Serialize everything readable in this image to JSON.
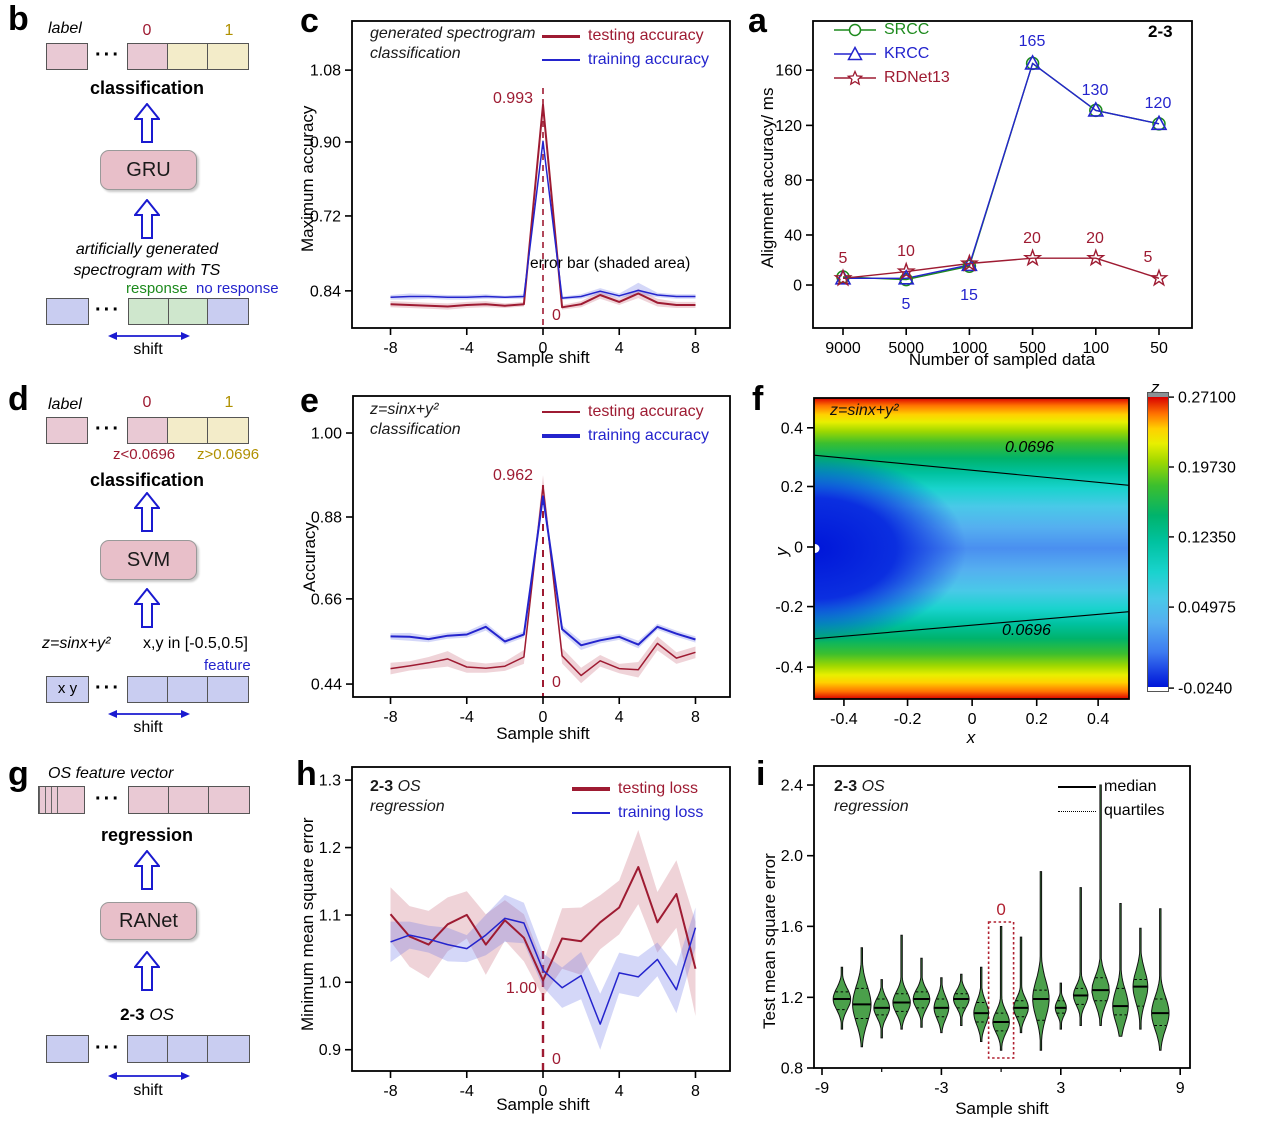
{
  "colors": {
    "testing": "#9e1b32",
    "training": "#2424cd",
    "srcc_green": "#1d8a1d",
    "gold": "#b09000",
    "violin_fill": "#4ba04b",
    "arrow_blue": "#1a1ad0",
    "box_pink": "#e9c9d4",
    "box_tan": "#f3ecc9",
    "box_blue": "#c9cdf1",
    "box_green": "#cfe7cd"
  },
  "panel_b": {
    "letter": "b",
    "label": "label",
    "dots": "···",
    "cell0": "0",
    "cell1": "1",
    "classification": "classification",
    "model": "GRU",
    "desc_line1": "artificially generated",
    "desc_line2": "spectrogram with TS",
    "response": "response",
    "no_response": "no response",
    "shift": "shift"
  },
  "panel_d": {
    "letter": "d",
    "label": "label",
    "dots": "···",
    "cell0": "0",
    "cell1": "1",
    "lt_label": "z<0.0696",
    "gt_label": "z>0.0696",
    "classification": "classification",
    "model": "SVM",
    "formula": "z=sinx+y²",
    "range": "x,y in [-0.5,0.5]",
    "feature": "feature",
    "xy": "x  y",
    "shift": "shift"
  },
  "panel_g": {
    "letter": "g",
    "header": "OS feature vector",
    "dots": "···",
    "regression": "regression",
    "model": "RANet",
    "os_bold": "2-3",
    "os_italic": "OS",
    "shift": "shift"
  },
  "chart_data": [
    {
      "id": "a",
      "type": "line",
      "panel_letter": "a",
      "corner_label": "2-3",
      "x_label": "Number of sampled data",
      "y_label": "Alignment accuracy/ ms",
      "categories": [
        "9000",
        "5000",
        "1000",
        "500",
        "100",
        "50"
      ],
      "y_ticks": [
        "160",
        "120",
        "80",
        "40",
        "0"
      ],
      "ylim": [
        -40,
        190
      ],
      "legend": [
        "SRCC",
        "KRCC",
        "RDNet13"
      ],
      "series": [
        {
          "name": "SRCC",
          "color": "#1d8a1d",
          "marker": "circle",
          "x": [
            0,
            1,
            2,
            3,
            4,
            5
          ],
          "values": [
            6,
            4,
            14,
            165,
            130,
            120
          ]
        },
        {
          "name": "KRCC",
          "color": "#2424cd",
          "marker": "triangle",
          "x": [
            0,
            1,
            2,
            3,
            4,
            5
          ],
          "values": [
            5,
            5,
            15,
            165,
            130,
            120
          ]
        },
        {
          "name": "RDNet13",
          "color": "#9e1b32",
          "marker": "star",
          "x": [
            0,
            1,
            2,
            3,
            4,
            5
          ],
          "values": [
            5,
            10,
            16,
            20,
            20,
            5
          ]
        }
      ],
      "annotations": [
        {
          "text": "5",
          "color": "#9e1b32"
        },
        {
          "text": "10",
          "color": "#9e1b32"
        },
        {
          "text": "5",
          "color": "#2424cd"
        },
        {
          "text": "15",
          "color": "#2424cd"
        },
        {
          "text": "165",
          "color": "#2424cd"
        },
        {
          "text": "20",
          "color": "#9e1b32"
        },
        {
          "text": "130",
          "color": "#2424cd"
        },
        {
          "text": "20",
          "color": "#9e1b32"
        },
        {
          "text": "120",
          "color": "#2424cd"
        },
        {
          "text": "5",
          "color": "#9e1b32"
        }
      ]
    },
    {
      "id": "c",
      "type": "line",
      "panel_letter": "c",
      "title_lines": [
        "generated spectrogram",
        "classification"
      ],
      "x_label": "Sample shift",
      "y_label": "Maximum accuracy",
      "note": "error bar (shaded area)",
      "x_ticks": [
        {
          "v": -8,
          "label": "-8"
        },
        {
          "v": -4,
          "label": "-4"
        },
        {
          "v": 0,
          "label": "0"
        },
        {
          "v": 4,
          "label": "4"
        },
        {
          "v": 8,
          "label": "8"
        }
      ],
      "y_ticks": [
        "1.08",
        "0.90",
        "0.72",
        "0.84"
      ],
      "legend": [
        "testing accuracy",
        "training accuracy"
      ],
      "x": [
        -8,
        -7,
        -6,
        -5,
        -4,
        -3,
        -2,
        -1,
        0,
        1,
        2,
        3,
        4,
        5,
        6,
        7,
        8
      ],
      "series": [
        {
          "name": "testing accuracy",
          "color": "#9e1b32",
          "values": [
            0.824,
            0.823,
            0.822,
            0.821,
            0.823,
            0.824,
            0.822,
            0.824,
            0.993,
            0.82,
            0.824,
            0.836,
            0.827,
            0.838,
            0.826,
            0.823,
            0.823
          ],
          "band": [
            0.004,
            0.004,
            0.004,
            0.004,
            0.004,
            0.004,
            0.003,
            0.003,
            0.004,
            0.003,
            0.004,
            0.005,
            0.004,
            0.006,
            0.005,
            0.004,
            0.004
          ]
        },
        {
          "name": "training accuracy",
          "color": "#2424cd",
          "values": [
            0.833,
            0.834,
            0.834,
            0.833,
            0.833,
            0.834,
            0.833,
            0.834,
            0.902,
            0.832,
            0.834,
            0.841,
            0.835,
            0.842,
            0.836,
            0.834,
            0.834
          ],
          "band": [
            0.003,
            0.004,
            0.003,
            0.003,
            0.003,
            0.003,
            0.002,
            0.003,
            0.004,
            0.002,
            0.003,
            0.004,
            0.003,
            0.005,
            0.003,
            0.003,
            0.003
          ]
        }
      ],
      "annotations": [
        {
          "text": "0.993",
          "color": "#9e1b32"
        },
        {
          "text": "0",
          "color": "#9e1b32"
        }
      ]
    },
    {
      "id": "e",
      "type": "line",
      "panel_letter": "e",
      "title_lines": [
        "z=sinx+y²",
        "classification"
      ],
      "x_label": "Sample shift",
      "y_label": "Accuracy",
      "x_ticks": [
        {
          "v": -8,
          "label": "-8"
        },
        {
          "v": -4,
          "label": "-4"
        },
        {
          "v": 0,
          "label": "0"
        },
        {
          "v": 4,
          "label": "4"
        },
        {
          "v": 8,
          "label": "8"
        }
      ],
      "y_ticks": [
        "1.00",
        "0.88",
        "0.66",
        "0.44"
      ],
      "legend": [
        "testing accuracy",
        "training accuracy"
      ],
      "x": [
        -8,
        -7,
        -6,
        -5,
        -4,
        -3,
        -2,
        -1,
        0,
        1,
        2,
        3,
        4,
        5,
        6,
        7,
        8
      ],
      "series": [
        {
          "name": "testing accuracy",
          "color": "#9e1b32",
          "values": [
            0.48,
            0.487,
            0.495,
            0.505,
            0.484,
            0.481,
            0.486,
            0.51,
            0.962,
            0.513,
            0.462,
            0.5,
            0.48,
            0.477,
            0.545,
            0.507,
            0.522
          ],
          "band": [
            0.015,
            0.012,
            0.015,
            0.02,
            0.015,
            0.012,
            0.012,
            0.018,
            0.008,
            0.02,
            0.02,
            0.015,
            0.012,
            0.02,
            0.018,
            0.015,
            0.015
          ]
        },
        {
          "name": "training accuracy",
          "color": "#2424cd",
          "values": [
            0.563,
            0.562,
            0.556,
            0.565,
            0.568,
            0.588,
            0.55,
            0.568,
            0.935,
            0.582,
            0.54,
            0.553,
            0.562,
            0.542,
            0.588,
            0.57,
            0.555
          ],
          "band": [
            0.008,
            0.01,
            0.008,
            0.008,
            0.008,
            0.01,
            0.008,
            0.008,
            0.006,
            0.01,
            0.012,
            0.008,
            0.008,
            0.01,
            0.008,
            0.008,
            0.008
          ]
        }
      ],
      "annotations": [
        {
          "text": "0.962",
          "color": "#9e1b32"
        },
        {
          "text": "0",
          "color": "#9e1b32"
        }
      ]
    },
    {
      "id": "f",
      "type": "heatmap",
      "panel_letter": "f",
      "title": "z=sinx+y²",
      "x_label": "x",
      "y_label": "y",
      "x_ticks": [
        "-0.4",
        "-0.2",
        "0",
        "0.2",
        "0.4"
      ],
      "y_ticks": [
        "0.4",
        "0.2",
        "0",
        "-0.2",
        "-0.4"
      ],
      "xlim": [
        -0.5,
        0.5
      ],
      "ylim": [
        -0.5,
        0.5
      ],
      "contour_level": "0.0696",
      "contour_upper": {
        "y_left": 0.31,
        "y_right": 0.21
      },
      "contour_lower": {
        "y_left": -0.3,
        "y_right": -0.21
      },
      "colorbar": {
        "title": "z",
        "ticks": [
          "0.27100",
          "0.19730",
          "0.12350",
          "0.04975",
          "-0.0240"
        ],
        "zmin": -0.024,
        "zmax": 0.271
      }
    },
    {
      "id": "h",
      "type": "line",
      "panel_letter": "h",
      "title_bold": "2-3",
      "title_italic": "OS",
      "title_line2": "regression",
      "x_label": "Sample shift",
      "y_label": "Minimum mean square error",
      "x_ticks": [
        {
          "v": -8,
          "label": "-8"
        },
        {
          "v": -4,
          "label": "-4"
        },
        {
          "v": 0,
          "label": "0"
        },
        {
          "v": 4,
          "label": "4"
        },
        {
          "v": 8,
          "label": "8"
        }
      ],
      "y_ticks": [
        "1.3",
        "1.2",
        "1.1",
        "1.0",
        "0.9"
      ],
      "legend": [
        "testing loss",
        "training loss"
      ],
      "x": [
        -8,
        -7,
        -6,
        -5,
        -4,
        -3,
        -2,
        -1,
        0,
        1,
        2,
        3,
        4,
        5,
        6,
        7,
        8
      ],
      "series": [
        {
          "name": "testing loss",
          "color": "#9e1b32",
          "values": [
            1.101,
            1.068,
            1.056,
            1.086,
            1.1,
            1.056,
            1.092,
            1.066,
            1.003,
            1.065,
            1.061,
            1.089,
            1.111,
            1.171,
            1.089,
            1.131,
            1.02
          ],
          "band": [
            0.04,
            0.045,
            0.05,
            0.04,
            0.035,
            0.045,
            0.03,
            0.035,
            0.025,
            0.045,
            0.05,
            0.04,
            0.04,
            0.055,
            0.045,
            0.05,
            0.07
          ]
        },
        {
          "name": "training loss",
          "color": "#2424cd",
          "values": [
            1.06,
            1.07,
            1.064,
            1.056,
            1.05,
            1.07,
            1.095,
            1.088,
            1.018,
            0.992,
            1.01,
            0.938,
            1.014,
            1.008,
            1.034,
            0.989,
            1.081
          ],
          "band": [
            0.03,
            0.02,
            0.02,
            0.025,
            0.02,
            0.03,
            0.035,
            0.03,
            0.025,
            0.03,
            0.035,
            0.045,
            0.03,
            0.03,
            0.025,
            0.035,
            0.03
          ]
        }
      ],
      "annotations": [
        {
          "text": "1.00",
          "color": "#9e1b32"
        },
        {
          "text": "0",
          "color": "#9e1b32"
        }
      ]
    },
    {
      "id": "i",
      "type": "violin",
      "panel_letter": "i",
      "title_bold": "2-3",
      "title_italic": "OS",
      "title_line2": "regression",
      "x_label": "Sample shift",
      "y_label": "Test mean square error",
      "x_ticks": [
        {
          "v": -9,
          "label": "-9"
        },
        {
          "v": -3,
          "label": "-3"
        },
        {
          "v": 3,
          "label": "3"
        },
        {
          "v": 9,
          "label": "9"
        }
      ],
      "minor_x_ticks": [
        -6,
        0,
        6
      ],
      "y_ticks": [
        "2.4",
        "2.0",
        "1.6",
        "1.2",
        "0.8"
      ],
      "ylim": [
        0.8,
        2.4
      ],
      "legend": [
        "median",
        "quartiles"
      ],
      "highlight": {
        "x": 0,
        "label": "0",
        "color": "#b02030"
      },
      "violins": [
        {
          "x": -8,
          "lo": 1.02,
          "q1": 1.13,
          "med": 1.19,
          "q3": 1.23,
          "hi": 1.37,
          "w": 0.95
        },
        {
          "x": -7,
          "lo": 0.92,
          "q1": 1.08,
          "med": 1.16,
          "q3": 1.25,
          "hi": 1.48,
          "w": 1.0
        },
        {
          "x": -6,
          "lo": 0.97,
          "q1": 1.1,
          "med": 1.14,
          "q3": 1.19,
          "hi": 1.3,
          "w": 0.85
        },
        {
          "x": -5,
          "lo": 1.02,
          "q1": 1.12,
          "med": 1.17,
          "q3": 1.22,
          "hi": 1.55,
          "w": 0.95
        },
        {
          "x": -4,
          "lo": 1.03,
          "q1": 1.14,
          "med": 1.19,
          "q3": 1.23,
          "hi": 1.42,
          "w": 0.9
        },
        {
          "x": -3,
          "lo": 1.0,
          "q1": 1.09,
          "med": 1.14,
          "q3": 1.19,
          "hi": 1.31,
          "w": 0.8
        },
        {
          "x": -2,
          "lo": 1.04,
          "q1": 1.14,
          "med": 1.19,
          "q3": 1.22,
          "hi": 1.33,
          "w": 0.85
        },
        {
          "x": -1,
          "lo": 0.95,
          "q1": 1.06,
          "med": 1.11,
          "q3": 1.17,
          "hi": 1.37,
          "w": 0.8
        },
        {
          "x": 0,
          "lo": 0.9,
          "q1": 1.01,
          "med": 1.06,
          "q3": 1.11,
          "hi": 1.6,
          "w": 0.9
        },
        {
          "x": 1,
          "lo": 1.0,
          "q1": 1.09,
          "med": 1.14,
          "q3": 1.18,
          "hi": 1.54,
          "w": 0.8
        },
        {
          "x": 2,
          "lo": 0.9,
          "q1": 1.07,
          "med": 1.19,
          "q3": 1.24,
          "hi": 1.91,
          "w": 0.9
        },
        {
          "x": 3,
          "lo": 1.02,
          "q1": 1.11,
          "med": 1.14,
          "q3": 1.18,
          "hi": 1.28,
          "w": 0.6
        },
        {
          "x": 4,
          "lo": 1.04,
          "q1": 1.16,
          "med": 1.21,
          "q3": 1.25,
          "hi": 1.82,
          "w": 0.8
        },
        {
          "x": 5,
          "lo": 1.04,
          "q1": 1.18,
          "med": 1.24,
          "q3": 1.31,
          "hi": 2.4,
          "w": 0.95
        },
        {
          "x": 6,
          "lo": 0.98,
          "q1": 1.1,
          "med": 1.15,
          "q3": 1.25,
          "hi": 1.73,
          "w": 0.85
        },
        {
          "x": 7,
          "lo": 1.02,
          "q1": 1.15,
          "med": 1.26,
          "q3": 1.3,
          "hi": 1.59,
          "w": 0.8
        },
        {
          "x": 8,
          "lo": 0.9,
          "q1": 1.04,
          "med": 1.11,
          "q3": 1.19,
          "hi": 1.7,
          "w": 0.95
        }
      ]
    }
  ]
}
